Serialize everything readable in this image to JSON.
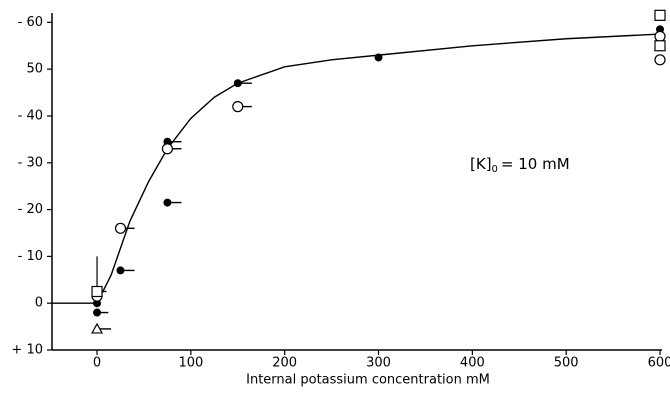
{
  "chart_data": {
    "type": "scatter",
    "xlabel": "Internal potassium concentration mM",
    "annotation": {
      "text": "[K]",
      "sub": "0",
      "rest": "= 10 mM"
    },
    "xlim": [
      -48,
      600
    ],
    "ylim": [
      10,
      -62
    ],
    "xticks": [
      0,
      100,
      200,
      300,
      400,
      500,
      600
    ],
    "yticks": [
      {
        "value": -60,
        "label": "- 60"
      },
      {
        "value": -50,
        "label": "50"
      },
      {
        "value": -40,
        "label": "- 40"
      },
      {
        "value": -30,
        "label": "- 30"
      },
      {
        "value": -20,
        "label": "- 20"
      },
      {
        "value": -10,
        "label": "- 10"
      },
      0,
      {
        "value": 10,
        "label": "+ 10"
      }
    ],
    "color": "#000000",
    "series": [
      {
        "marker": "filled-circle",
        "x": [
          0,
          0,
          25,
          75,
          75,
          150,
          300,
          600
        ],
        "values": [
          0,
          2,
          -7,
          -21.5,
          -34.5,
          -47,
          -52.5,
          -58.5
        ],
        "xerr": [
          null,
          12,
          15,
          15,
          15,
          15,
          null,
          null
        ]
      },
      {
        "marker": "open-circle",
        "x": [
          0,
          25,
          75,
          150,
          600,
          600
        ],
        "values": [
          -1.5,
          -16,
          -33,
          -42,
          -52,
          -57
        ],
        "xerr": [
          null,
          15,
          15,
          15,
          null,
          null
        ]
      },
      {
        "marker": "square",
        "x": [
          0,
          600,
          600
        ],
        "values": [
          -2.5,
          -61.5,
          -55
        ],
        "xerr": [
          10,
          null,
          null
        ],
        "yerr": [
          7.5,
          null,
          null
        ]
      },
      {
        "marker": "triangle",
        "x": [
          0
        ],
        "values": [
          5.5
        ],
        "xerr": [
          15
        ]
      }
    ],
    "fit": {
      "x": [
        -48,
        0,
        15,
        35,
        55,
        75,
        100,
        125,
        150,
        200,
        250,
        300,
        400,
        500,
        600
      ],
      "values": [
        0,
        0,
        -6,
        -17.5,
        -26,
        -33,
        -39.5,
        -44,
        -47,
        -50.5,
        -52,
        -53,
        -55,
        -56.5,
        -57.5
      ]
    }
  }
}
